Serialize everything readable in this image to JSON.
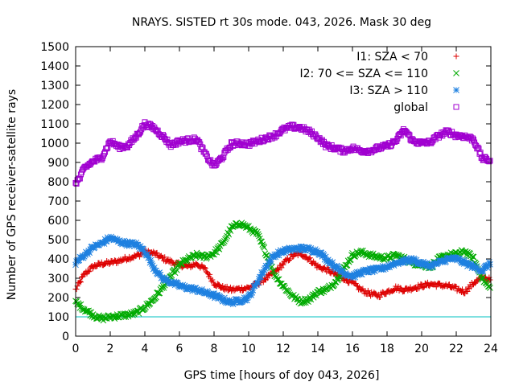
{
  "chart_data": {
    "type": "scatter",
    "title": "NRAYS. SISTED rt 30s mode. 043, 2026. Mask 30 deg",
    "xlabel": "GPS time [hours of doy 043, 2026]",
    "ylabel": "Number of GPS receiver-satellite rays",
    "xlim": [
      0,
      24
    ],
    "ylim": [
      0,
      1500
    ],
    "xticks": [
      "0",
      "2",
      "4",
      "6",
      "8",
      "10",
      "12",
      "14",
      "16",
      "18",
      "20",
      "22",
      "24"
    ],
    "yticks": [
      "0",
      "100",
      "200",
      "300",
      "400",
      "500",
      "600",
      "700",
      "800",
      "900",
      "1000",
      "1100",
      "1200",
      "1300",
      "1400",
      "1500"
    ],
    "reference_line": {
      "value": 100,
      "color": "#00c0c0"
    },
    "legend_position": "top-right",
    "series": [
      {
        "name": "I1: SZA < 70",
        "marker": "plus",
        "color": "#dd0000",
        "x": [
          0,
          0.5,
          1,
          1.5,
          2,
          2.5,
          3,
          3.5,
          4,
          4.5,
          5,
          5.5,
          6,
          6.5,
          7,
          7.5,
          8,
          8.5,
          9,
          9.5,
          10,
          10.5,
          11,
          11.5,
          12,
          12.5,
          13,
          13.5,
          14,
          14.5,
          15,
          15.5,
          16,
          16.5,
          17,
          17.5,
          18,
          18.5,
          19,
          19.5,
          20,
          20.5,
          21,
          21.5,
          22,
          22.5,
          23,
          23.5,
          24
        ],
        "y": [
          240,
          320,
          360,
          375,
          380,
          390,
          405,
          415,
          435,
          430,
          405,
          385,
          370,
          360,
          375,
          345,
          275,
          250,
          240,
          245,
          250,
          270,
          300,
          330,
          375,
          415,
          430,
          400,
          360,
          345,
          320,
          300,
          275,
          240,
          220,
          210,
          230,
          250,
          240,
          250,
          260,
          270,
          265,
          260,
          245,
          230,
          275,
          305,
          290
        ]
      },
      {
        "name": "I2: 70 <= SZA <= 110",
        "marker": "cross",
        "color": "#00aa00",
        "x": [
          0,
          0.5,
          1,
          1.5,
          2,
          2.5,
          3,
          3.5,
          4,
          4.5,
          5,
          5.5,
          6,
          6.5,
          7,
          7.5,
          8,
          8.5,
          9,
          9.5,
          10,
          10.5,
          11,
          11.5,
          12,
          12.5,
          13,
          13.5,
          14,
          14.5,
          15,
          15.5,
          16,
          16.5,
          17,
          17.5,
          18,
          18.5,
          19,
          19.5,
          20,
          20.5,
          21,
          21.5,
          22,
          22.5,
          23,
          23.5,
          24
        ],
        "y": [
          175,
          140,
          110,
          90,
          100,
          105,
          110,
          120,
          150,
          190,
          250,
          310,
          370,
          400,
          420,
          410,
          430,
          480,
          560,
          585,
          560,
          530,
          430,
          320,
          260,
          210,
          180,
          190,
          230,
          240,
          280,
          350,
          420,
          435,
          420,
          410,
          405,
          420,
          400,
          380,
          370,
          360,
          400,
          420,
          425,
          440,
          400,
          300,
          240
        ]
      },
      {
        "name": "I3: SZA > 110",
        "marker": "star",
        "color": "#1e80e0",
        "x": [
          0,
          0.5,
          1,
          1.5,
          2,
          2.5,
          3,
          3.5,
          4,
          4.5,
          5,
          5.5,
          6,
          6.5,
          7,
          7.5,
          8,
          8.5,
          9,
          9.5,
          10,
          10.5,
          11,
          11.5,
          12,
          12.5,
          13,
          13.5,
          14,
          14.5,
          15,
          15.5,
          16,
          16.5,
          17,
          17.5,
          18,
          18.5,
          19,
          19.5,
          20,
          20.5,
          21,
          21.5,
          22,
          22.5,
          23,
          23.5,
          24
        ],
        "y": [
          380,
          420,
          460,
          480,
          510,
          490,
          480,
          475,
          440,
          360,
          300,
          280,
          260,
          250,
          240,
          225,
          210,
          190,
          175,
          185,
          200,
          280,
          360,
          420,
          440,
          450,
          455,
          450,
          440,
          400,
          360,
          330,
          310,
          330,
          340,
          345,
          360,
          380,
          390,
          395,
          375,
          365,
          380,
          400,
          400,
          380,
          360,
          340,
          380
        ]
      },
      {
        "name": "global",
        "marker": "square",
        "color": "#a000d0",
        "x": [
          0,
          0.25,
          0.5,
          1,
          1.5,
          2,
          2.5,
          3,
          3.5,
          4,
          4.5,
          5,
          5.5,
          6,
          6.5,
          7,
          7.5,
          8,
          8.5,
          9,
          9.5,
          10,
          10.5,
          11,
          11.5,
          12,
          12.5,
          13,
          13.5,
          14,
          14.5,
          15,
          15.5,
          16,
          16.5,
          17,
          17.5,
          18,
          18.5,
          19,
          19.5,
          20,
          20.5,
          21,
          21.5,
          22,
          22.5,
          23,
          23.5,
          24
        ],
        "y": [
          795,
          820,
          870,
          905,
          925,
          1010,
          980,
          985,
          1035,
          1100,
          1080,
          1040,
          990,
          1010,
          1015,
          1020,
          940,
          880,
          930,
          995,
          1000,
          995,
          1010,
          1025,
          1040,
          1070,
          1085,
          1080,
          1060,
          1030,
          985,
          975,
          960,
          975,
          960,
          960,
          975,
          985,
          1010,
          1070,
          1010,
          1000,
          1005,
          1040,
          1060,
          1040,
          1035,
          1020,
          920,
          910
        ]
      }
    ]
  }
}
